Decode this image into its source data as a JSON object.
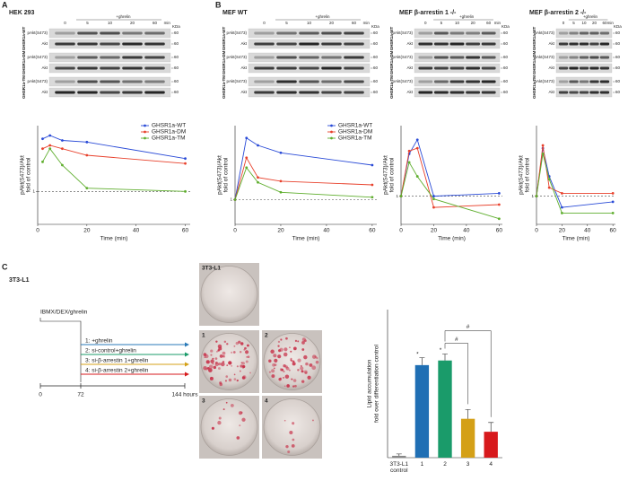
{
  "labels": {
    "a": "A",
    "b": "B",
    "c": "C"
  },
  "blots": [
    {
      "title": "HEK 293",
      "treatment": "+ghrelin",
      "lanes": [
        "0",
        "5",
        "10",
        "20",
        "60"
      ],
      "unit": "min",
      "kda": "KDa",
      "marker": "60",
      "groups": [
        "GHSR1a-WT",
        "GHSR1a-DM",
        "GHSR1a-TM"
      ],
      "rows": [
        "pAkt(S473)",
        "Akt"
      ]
    },
    {
      "title": "MEF WT",
      "treatment": "+ghrelin",
      "lanes": [
        "0",
        "5",
        "10",
        "20",
        "60"
      ],
      "unit": "min",
      "kda": "KDa",
      "marker": "60",
      "groups": [
        "GHSR1a-WT",
        "GHSR1a-DM",
        "GHSR1a-TM"
      ],
      "rows": [
        "pAkt(S473)",
        "Akt"
      ]
    },
    {
      "title": "MEF β-arrestin 1 -/-",
      "treatment": "+ghrelin",
      "lanes": [
        "0",
        "5",
        "10",
        "20",
        "60"
      ],
      "unit": "min",
      "kda": "KDa",
      "marker": "60",
      "groups": [
        "GHSR1a-WT",
        "GHSR1a-DM",
        "GHSR1a-TM"
      ],
      "rows": [
        "pAkt(S473)",
        "Akt"
      ]
    },
    {
      "title": "MEF β-arrestin 2 -/-",
      "treatment": "+ghrelin",
      "lanes": [
        "0",
        "5",
        "10",
        "20",
        "60"
      ],
      "unit": "min",
      "kda": "KDa",
      "marker": "60",
      "groups": [
        "GHSR1a-WT",
        "GHSR1a-DM",
        "GHSR1a-TM"
      ],
      "rows": [
        "pAkt(S473)",
        "Akt"
      ]
    }
  ],
  "chart_data": [
    {
      "type": "line",
      "xlabel": "Time (min)",
      "ylabel": [
        "pAkt(S473)/Akt",
        "fold of control"
      ],
      "x": [
        2,
        5,
        10,
        20,
        60
      ],
      "xlim": [
        0,
        62
      ],
      "xticks": [
        0,
        20,
        40,
        60
      ],
      "ylim": [
        0,
        3
      ],
      "yticks": [
        1
      ],
      "reference": 1,
      "legend": "top-right",
      "series": [
        {
          "name": "GHSR1a-WT",
          "color": "#2a4bd7",
          "values": [
            2.6,
            2.7,
            2.55,
            2.5,
            2.0
          ]
        },
        {
          "name": "GHSR1a-DM",
          "color": "#e8412c",
          "values": [
            2.3,
            2.4,
            2.3,
            2.1,
            1.85
          ]
        },
        {
          "name": "GHSR1a-TM",
          "color": "#5fae2e",
          "values": [
            1.9,
            2.3,
            1.8,
            1.1,
            1.0
          ]
        }
      ]
    },
    {
      "type": "line",
      "xlabel": "Time (min)",
      "ylabel": [
        "pAkt(S473)/Akt",
        "fold of control"
      ],
      "x": [
        0,
        5,
        10,
        20,
        60
      ],
      "xlim": [
        0,
        62
      ],
      "xticks": [
        0,
        20,
        40,
        60
      ],
      "ylim": [
        0,
        4
      ],
      "yticks": [
        1
      ],
      "reference": 1,
      "legend": "top-right",
      "series": [
        {
          "name": "GHSR1a-WT",
          "color": "#2a4bd7",
          "values": [
            1,
            3.5,
            3.2,
            2.9,
            2.4
          ]
        },
        {
          "name": "GHSR1a-DM",
          "color": "#e8412c",
          "values": [
            1,
            2.7,
            1.9,
            1.75,
            1.6
          ]
        },
        {
          "name": "GHSR1a-TM",
          "color": "#5fae2e",
          "values": [
            1,
            2.3,
            1.7,
            1.3,
            1.1
          ]
        }
      ]
    },
    {
      "type": "line",
      "xlabel": "Time (min)",
      "ylabel": [
        "pAkt(S473)/Akt",
        "fold of control"
      ],
      "x": [
        0,
        5,
        10,
        20,
        60
      ],
      "xlim": [
        0,
        62
      ],
      "xticks": [
        0,
        20,
        40,
        60
      ],
      "ylim": [
        0,
        3.5
      ],
      "yticks": [
        1
      ],
      "reference": 1,
      "series": [
        {
          "color": "#2a4bd7",
          "values": [
            1,
            2.5,
            3.0,
            1.0,
            1.1
          ]
        },
        {
          "color": "#e8412c",
          "values": [
            1,
            2.6,
            2.7,
            0.6,
            0.7
          ]
        },
        {
          "color": "#5fae2e",
          "values": [
            1,
            2.2,
            1.7,
            0.9,
            0.2
          ]
        }
      ]
    },
    {
      "type": "line",
      "xlabel": "Time (min)",
      "ylabel": [
        "pAkt(S473)/Akt",
        "fold of control"
      ],
      "x": [
        0,
        5,
        10,
        20,
        60
      ],
      "xlim": [
        0,
        62
      ],
      "xticks": [
        0,
        20,
        40,
        60
      ],
      "ylim": [
        0,
        3.5
      ],
      "yticks": [
        1
      ],
      "reference": 1,
      "series": [
        {
          "color": "#2a4bd7",
          "values": [
            1,
            2.7,
            1.7,
            0.6,
            0.8
          ]
        },
        {
          "color": "#e8412c",
          "values": [
            1,
            2.8,
            1.3,
            1.1,
            1.1
          ]
        },
        {
          "color": "#5fae2e",
          "values": [
            1,
            2.5,
            1.6,
            0.4,
            0.4
          ]
        }
      ]
    },
    {
      "type": "bar",
      "ylabel": [
        "Lipid accumulation",
        "fold over differentiation control"
      ],
      "categories": [
        "3T3-L1 control",
        "1",
        "2",
        "3",
        "4"
      ],
      "values": [
        0.02,
        1.0,
        1.05,
        0.42,
        0.28
      ],
      "errors": [
        0.02,
        0.08,
        0.07,
        0.1,
        0.1
      ],
      "colors": [
        "#888888",
        "#1f6fb4",
        "#1a9b6a",
        "#d4a017",
        "#d7191c"
      ],
      "ylim": [
        0,
        1.6
      ],
      "annotations": [
        "*",
        "*",
        "#",
        "#"
      ]
    }
  ],
  "timeline": {
    "title": "3T3-L1",
    "start": "IBMX/DEX/ghrelin",
    "ticks": [
      "0",
      "72",
      "144 hours"
    ],
    "arms": [
      {
        "label": "1: +ghrelin",
        "color": "#2a7ab8"
      },
      {
        "label": "2: si-control+ghrelin",
        "color": "#1a9b6a"
      },
      {
        "label": "3: si-β-arrestin 1+ghrelin",
        "color": "#d4a017"
      },
      {
        "label": "4: si-β-arrestin 2+ghrelin",
        "color": "#d7191c"
      }
    ]
  },
  "photos": [
    "3T3-L1",
    "1",
    "2",
    "3",
    "4"
  ]
}
